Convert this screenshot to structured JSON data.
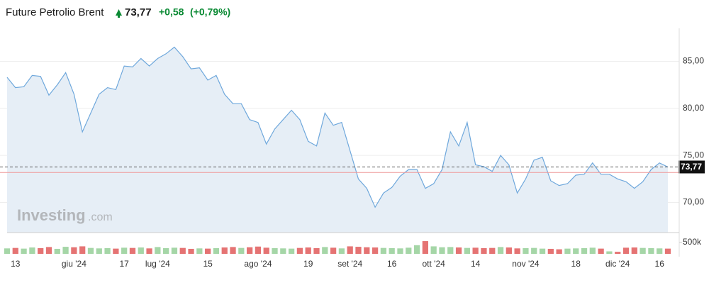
{
  "chart_data": {
    "type": "line",
    "title": "Future Petrolio Brent",
    "last_price": {
      "value": 73.77,
      "label": "73,77"
    },
    "change": {
      "value": 0.58,
      "label": "+0,58"
    },
    "change_pct": {
      "value": 0.79,
      "label": "(+0,79%)"
    },
    "categories": [
      null,
      "13",
      null,
      null,
      null,
      null,
      null,
      null,
      "giu '24",
      null,
      null,
      null,
      null,
      null,
      "17",
      null,
      null,
      null,
      "lug '24",
      null,
      null,
      null,
      null,
      null,
      "15",
      null,
      null,
      null,
      null,
      null,
      "ago '24",
      null,
      null,
      null,
      null,
      null,
      "19",
      null,
      null,
      null,
      null,
      "set '24",
      null,
      null,
      null,
      null,
      "16",
      null,
      null,
      null,
      null,
      "ott '24",
      null,
      null,
      null,
      null,
      "14",
      null,
      null,
      null,
      null,
      null,
      "nov '24",
      null,
      null,
      null,
      null,
      null,
      "18",
      null,
      null,
      null,
      null,
      "dic '24",
      null,
      null,
      null,
      null,
      "16",
      null
    ],
    "values": [
      83.3,
      82.2,
      82.3,
      83.5,
      83.4,
      81.4,
      82.5,
      83.8,
      81.5,
      77.5,
      79.5,
      81.5,
      82.2,
      82.0,
      84.5,
      84.4,
      85.3,
      84.5,
      85.3,
      85.8,
      86.5,
      85.5,
      84.2,
      84.3,
      83.0,
      83.5,
      81.5,
      80.5,
      80.5,
      78.8,
      78.5,
      76.2,
      77.8,
      78.8,
      79.8,
      78.8,
      76.5,
      76.0,
      79.5,
      78.2,
      78.5,
      75.5,
      72.5,
      71.5,
      69.5,
      71.0,
      71.6,
      72.8,
      73.5,
      73.5,
      71.5,
      72.0,
      73.5,
      77.5,
      76.0,
      78.5,
      74.0,
      73.8,
      73.3,
      75.0,
      74.0,
      71.0,
      72.5,
      74.5,
      74.8,
      72.3,
      71.8,
      72.0,
      72.9,
      73.0,
      74.2,
      73.0,
      73.0,
      72.5,
      72.2,
      71.5,
      72.2,
      73.5,
      74.2,
      73.77
    ],
    "volume": [
      240000,
      260000,
      230000,
      280000,
      250000,
      300000,
      220000,
      310000,
      290000,
      330000,
      260000,
      240000,
      250000,
      230000,
      270000,
      260000,
      280000,
      240000,
      300000,
      250000,
      270000,
      260000,
      220000,
      240000,
      230000,
      250000,
      280000,
      300000,
      260000,
      290000,
      320000,
      270000,
      250000,
      240000,
      230000,
      260000,
      280000,
      250000,
      300000,
      270000,
      240000,
      330000,
      310000,
      290000,
      280000,
      260000,
      250000,
      240000,
      270000,
      380000,
      560000,
      330000,
      290000,
      300000,
      280000,
      260000,
      270000,
      250000,
      260000,
      300000,
      280000,
      240000,
      250000,
      260000,
      230000,
      220000,
      200000,
      230000,
      240000,
      250000,
      270000,
      230000,
      110000,
      90000,
      270000,
      280000,
      260000,
      250000,
      240000,
      230000
    ],
    "color": "#6fa8dc",
    "fill_color": "#e6eef6",
    "up_color": "#a5d6a7",
    "down_color": "#e57373",
    "prev_close": 73.19,
    "prev_close_color": "#ef9a9a",
    "ylim": [
      66.8,
      88.5
    ],
    "yticks": [
      {
        "value": 70,
        "label": "70,00"
      },
      {
        "value": 75,
        "label": "75,00"
      },
      {
        "value": 80,
        "label": "80,00"
      },
      {
        "value": 85,
        "label": "85,00"
      }
    ],
    "volume_ylim": [
      0,
      780000
    ],
    "volume_yticks": [
      {
        "value": 500000,
        "label": "500k"
      }
    ],
    "grid": true,
    "watermark": {
      "brand": "Investing",
      "suffix": ".com"
    }
  }
}
